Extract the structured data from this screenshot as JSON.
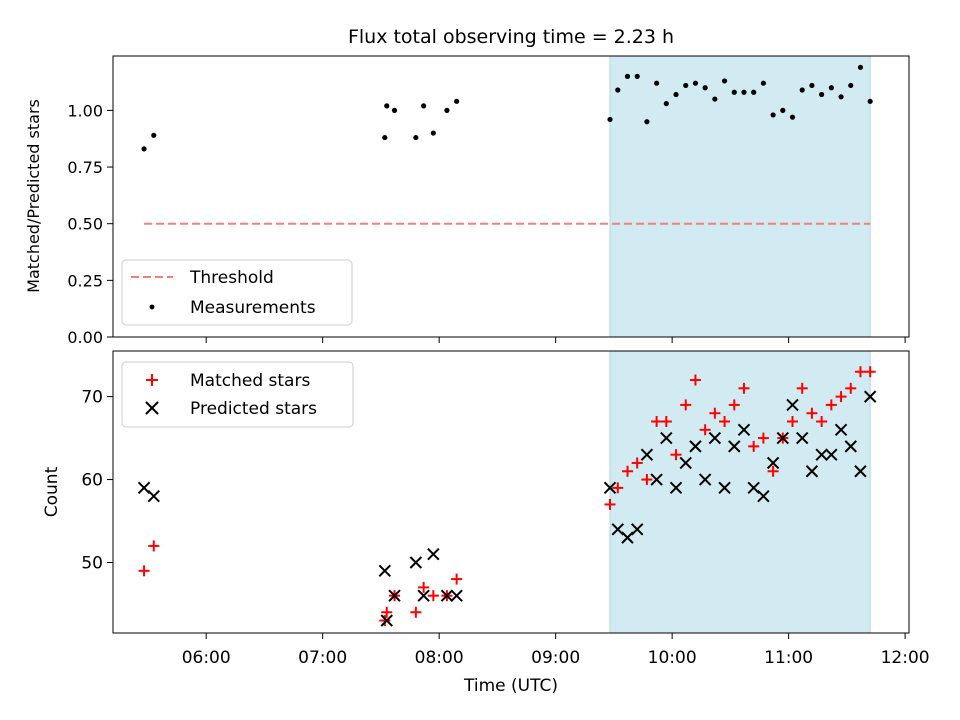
{
  "chart_data": [
    {
      "type": "scatter",
      "title": "Flux total observing time = 2.23 h",
      "ylabel": "Matched/Predicted stars",
      "xlabel": "",
      "x_axis": {
        "type": "time",
        "range": [
          "05:12",
          "12:02"
        ],
        "ticks": [
          "06:00",
          "07:00",
          "08:00",
          "09:00",
          "10:00",
          "11:00",
          "12:00"
        ],
        "tick_labels_visible": false
      },
      "ylim": [
        0.0,
        1.24
      ],
      "yticks": [
        "0.00",
        "0.25",
        "0.50",
        "0.75",
        "1.00"
      ],
      "yticks_values": [
        0.0,
        0.25,
        0.5,
        0.75,
        1.0
      ],
      "shaded_region": {
        "start": "09:28",
        "end": "11:42",
        "color": "#add8e6"
      },
      "threshold": {
        "name": "Threshold",
        "y": 0.5,
        "x_start": "05:28",
        "x_end": "11:42",
        "color": "#f08080",
        "style": "dashed"
      },
      "series": [
        {
          "name": "Measurements",
          "color": "#000000",
          "marker": "dot",
          "points": [
            [
              "05:28",
              0.83
            ],
            [
              "05:33",
              0.89
            ],
            [
              "07:32",
              0.88
            ],
            [
              "07:33",
              1.02
            ],
            [
              "07:37",
              1.0
            ],
            [
              "07:48",
              0.88
            ],
            [
              "07:52",
              1.02
            ],
            [
              "07:57",
              0.9
            ],
            [
              "08:04",
              1.0
            ],
            [
              "08:09",
              1.04
            ],
            [
              "09:28",
              0.96
            ],
            [
              "09:32",
              1.09
            ],
            [
              "09:37",
              1.15
            ],
            [
              "09:42",
              1.15
            ],
            [
              "09:47",
              0.95
            ],
            [
              "09:52",
              1.12
            ],
            [
              "09:57",
              1.03
            ],
            [
              "10:02",
              1.07
            ],
            [
              "10:07",
              1.11
            ],
            [
              "10:12",
              1.12
            ],
            [
              "10:17",
              1.1
            ],
            [
              "10:22",
              1.05
            ],
            [
              "10:27",
              1.13
            ],
            [
              "10:32",
              1.08
            ],
            [
              "10:37",
              1.08
            ],
            [
              "10:42",
              1.08
            ],
            [
              "10:47",
              1.12
            ],
            [
              "10:52",
              0.98
            ],
            [
              "10:57",
              1.0
            ],
            [
              "11:02",
              0.97
            ],
            [
              "11:07",
              1.09
            ],
            [
              "11:12",
              1.11
            ],
            [
              "11:17",
              1.07
            ],
            [
              "11:22",
              1.1
            ],
            [
              "11:27",
              1.06
            ],
            [
              "11:32",
              1.11
            ],
            [
              "11:37",
              1.19
            ],
            [
              "11:42",
              1.04
            ]
          ]
        }
      ],
      "legend": {
        "placement": "lower-left",
        "entries": [
          "Threshold",
          "Measurements"
        ]
      }
    },
    {
      "type": "scatter",
      "title": "",
      "ylabel": "Count",
      "xlabel": "Time (UTC)",
      "x_axis": {
        "type": "time",
        "range": [
          "05:12",
          "12:02"
        ],
        "ticks": [
          "06:00",
          "07:00",
          "08:00",
          "09:00",
          "10:00",
          "11:00",
          "12:00"
        ]
      },
      "ylim": [
        41.5,
        75.5
      ],
      "yticks": [
        "50",
        "60",
        "70"
      ],
      "yticks_values": [
        50,
        60,
        70
      ],
      "shaded_region": {
        "start": "09:28",
        "end": "11:42",
        "color": "#add8e6"
      },
      "series": [
        {
          "name": "Matched stars",
          "color": "#ff0000",
          "marker": "plus",
          "points": [
            [
              "05:28",
              49
            ],
            [
              "05:33",
              52
            ],
            [
              "07:32",
              43
            ],
            [
              "07:33",
              44
            ],
            [
              "07:37",
              46
            ],
            [
              "07:48",
              44
            ],
            [
              "07:52",
              47
            ],
            [
              "07:57",
              46
            ],
            [
              "08:04",
              46
            ],
            [
              "08:09",
              48
            ],
            [
              "09:28",
              57
            ],
            [
              "09:32",
              59
            ],
            [
              "09:37",
              61
            ],
            [
              "09:42",
              62
            ],
            [
              "09:47",
              60
            ],
            [
              "09:52",
              67
            ],
            [
              "09:57",
              67
            ],
            [
              "10:02",
              63
            ],
            [
              "10:07",
              69
            ],
            [
              "10:12",
              72
            ],
            [
              "10:17",
              66
            ],
            [
              "10:22",
              68
            ],
            [
              "10:27",
              67
            ],
            [
              "10:32",
              69
            ],
            [
              "10:37",
              71
            ],
            [
              "10:42",
              64
            ],
            [
              "10:47",
              65
            ],
            [
              "10:52",
              61
            ],
            [
              "10:57",
              65
            ],
            [
              "11:02",
              67
            ],
            [
              "11:07",
              71
            ],
            [
              "11:12",
              68
            ],
            [
              "11:17",
              67
            ],
            [
              "11:22",
              69
            ],
            [
              "11:27",
              70
            ],
            [
              "11:32",
              71
            ],
            [
              "11:37",
              73
            ],
            [
              "11:42",
              73
            ]
          ]
        },
        {
          "name": "Predicted stars",
          "color": "#000000",
          "marker": "x",
          "points": [
            [
              "05:28",
              59
            ],
            [
              "05:33",
              58
            ],
            [
              "07:32",
              49
            ],
            [
              "07:33",
              43
            ],
            [
              "07:37",
              46
            ],
            [
              "07:48",
              50
            ],
            [
              "07:52",
              46
            ],
            [
              "07:57",
              51
            ],
            [
              "08:04",
              46
            ],
            [
              "08:09",
              46
            ],
            [
              "09:28",
              59
            ],
            [
              "09:32",
              54
            ],
            [
              "09:37",
              53
            ],
            [
              "09:42",
              54
            ],
            [
              "09:47",
              63
            ],
            [
              "09:52",
              60
            ],
            [
              "09:57",
              65
            ],
            [
              "10:02",
              59
            ],
            [
              "10:07",
              62
            ],
            [
              "10:12",
              64
            ],
            [
              "10:17",
              60
            ],
            [
              "10:22",
              65
            ],
            [
              "10:27",
              59
            ],
            [
              "10:32",
              64
            ],
            [
              "10:37",
              66
            ],
            [
              "10:42",
              59
            ],
            [
              "10:47",
              58
            ],
            [
              "10:52",
              62
            ],
            [
              "10:57",
              65
            ],
            [
              "11:02",
              69
            ],
            [
              "11:07",
              65
            ],
            [
              "11:12",
              61
            ],
            [
              "11:17",
              63
            ],
            [
              "11:22",
              63
            ],
            [
              "11:27",
              66
            ],
            [
              "11:32",
              64
            ],
            [
              "11:37",
              61
            ],
            [
              "11:42",
              70
            ]
          ]
        }
      ],
      "legend": {
        "placement": "upper-left",
        "entries": [
          "Matched stars",
          "Predicted stars"
        ]
      }
    }
  ]
}
